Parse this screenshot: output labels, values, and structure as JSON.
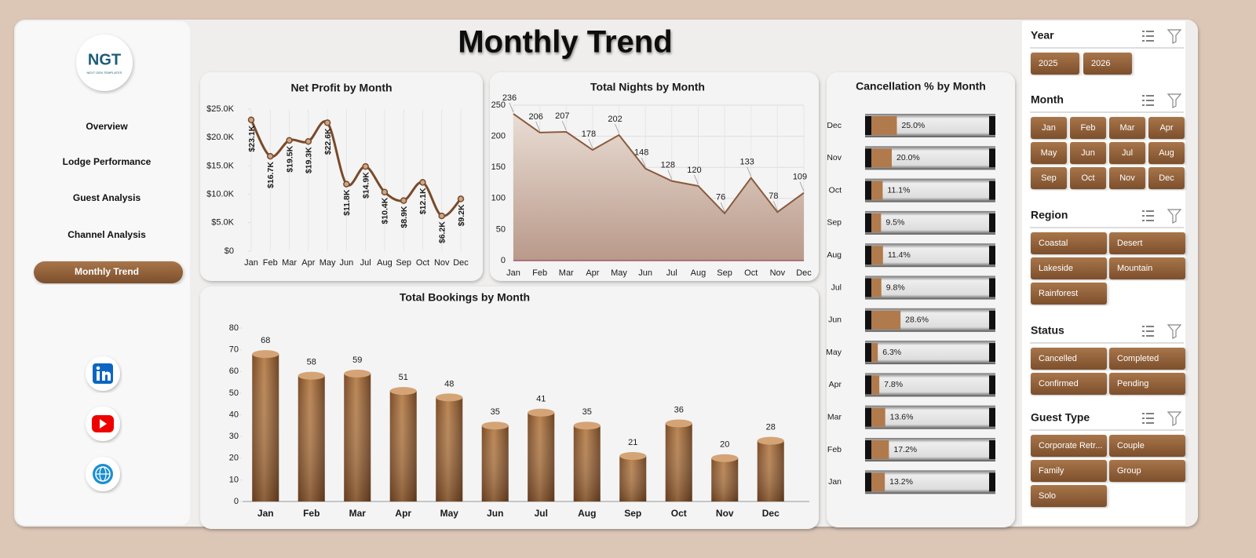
{
  "title": "Monthly Trend",
  "logo": {
    "text": "NGT",
    "subtext": "NEXT GEN TEMPLATES"
  },
  "nav": [
    "Overview",
    "Lodge Performance",
    "Guest Analysis",
    "Channel Analysis",
    "Monthly Trend"
  ],
  "slicers": [
    {
      "title": "Year",
      "items": [
        "2025",
        "2026"
      ]
    },
    {
      "title": "Month",
      "items": [
        "Jan",
        "Feb",
        "Mar",
        "Apr",
        "May",
        "Jun",
        "Jul",
        "Aug",
        "Sep",
        "Oct",
        "Nov",
        "Dec"
      ]
    },
    {
      "title": "Region",
      "items": [
        "Coastal",
        "Desert",
        "Lakeside",
        "Mountain",
        "Rainforest"
      ]
    },
    {
      "title": "Status",
      "items": [
        "Cancelled",
        "Completed",
        "Confirmed",
        "Pending"
      ]
    },
    {
      "title": "Guest Type",
      "items": [
        "Corporate Retr...",
        "Couple",
        "Family",
        "Group",
        "Solo"
      ]
    }
  ],
  "chart_data": [
    {
      "type": "line",
      "title": "Net Profit by Month",
      "color": "#7a4a2a",
      "categories": [
        "Jan",
        "Feb",
        "Mar",
        "Apr",
        "May",
        "Jun",
        "Jul",
        "Aug",
        "Sep",
        "Oct",
        "Nov",
        "Dec"
      ],
      "values": [
        23100,
        16700,
        19500,
        19300,
        22600,
        11800,
        14900,
        10400,
        8900,
        12100,
        6200,
        9200
      ],
      "value_labels": [
        "$23.1K",
        "$16.7K",
        "$19.5K",
        "$19.3K",
        "$22.6K",
        "$11.8K",
        "$14.9K",
        "$10.4K",
        "$8.9K",
        "$12.1K",
        "$6.2K",
        "$9.2K"
      ],
      "ylim": [
        0,
        25000
      ],
      "yticks": [
        {
          "value": 0,
          "label": "$0"
        },
        {
          "value": 5000,
          "label": "$5.0K"
        },
        {
          "value": 10000,
          "label": "$10.0K"
        },
        {
          "value": 15000,
          "label": "$15.0K"
        },
        {
          "value": 20000,
          "label": "$20.0K"
        },
        {
          "value": 25000,
          "label": "$25.0K"
        }
      ]
    },
    {
      "type": "area",
      "title": "Total Nights by Month",
      "color": "#8b5a3c",
      "grid": true,
      "categories": [
        "Jan",
        "Feb",
        "Mar",
        "Apr",
        "May",
        "Jun",
        "Jul",
        "Aug",
        "Sep",
        "Oct",
        "Nov",
        "Dec"
      ],
      "values": [
        236,
        206,
        207,
        178,
        202,
        148,
        128,
        120,
        76,
        133,
        78,
        109
      ],
      "ylim": [
        0,
        250
      ],
      "yticks": [
        0,
        50,
        100,
        150,
        200,
        250
      ]
    },
    {
      "type": "bar",
      "title": "Total Bookings by Month",
      "color": "#9a6638",
      "categories": [
        "Jan",
        "Feb",
        "Mar",
        "Apr",
        "May",
        "Jun",
        "Jul",
        "Aug",
        "Sep",
        "Oct",
        "Nov",
        "Dec"
      ],
      "values": [
        68,
        58,
        59,
        51,
        48,
        35,
        41,
        35,
        21,
        36,
        20,
        28
      ],
      "ylim": [
        0,
        80
      ],
      "yticks": [
        0,
        10,
        20,
        30,
        40,
        50,
        60,
        70,
        80
      ]
    },
    {
      "type": "hbar",
      "title": "Cancellation % by Month",
      "color": "#b07a4c",
      "categories": [
        "Jan",
        "Feb",
        "Mar",
        "Apr",
        "May",
        "Jun",
        "Jul",
        "Aug",
        "Sep",
        "Oct",
        "Nov",
        "Dec"
      ],
      "values": [
        13.2,
        17.2,
        13.6,
        7.8,
        6.3,
        28.6,
        9.8,
        11.4,
        9.5,
        11.1,
        20.0,
        25.0
      ],
      "value_labels": [
        "13.2%",
        "17.2%",
        "13.6%",
        "7.8%",
        "6.3%",
        "28.6%",
        "9.8%",
        "11.4%",
        "9.5%",
        "11.1%",
        "20.0%",
        "25.0%"
      ]
    }
  ]
}
